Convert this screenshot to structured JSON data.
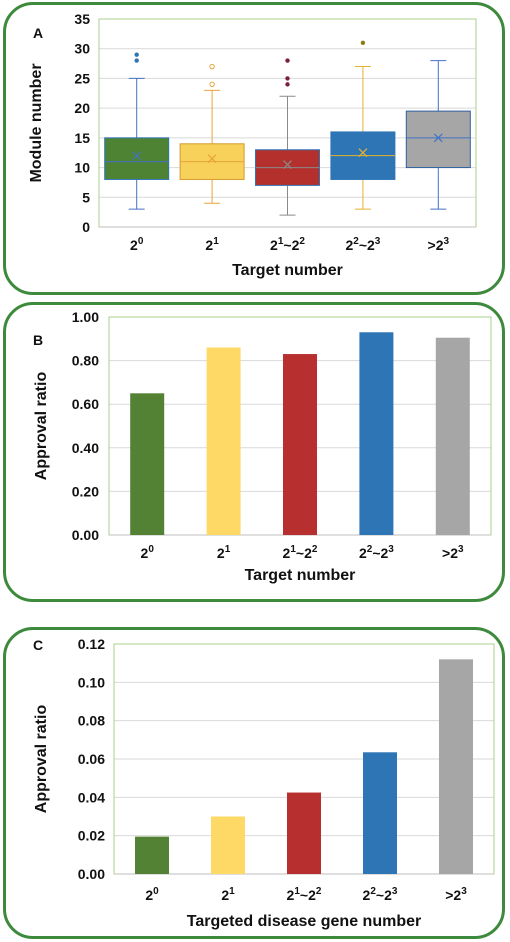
{
  "chart_data": [
    {
      "panel_label": "A",
      "type": "box",
      "categories": [
        {
          "base": "2",
          "sup": "0"
        },
        {
          "base": "2",
          "sup": "1"
        },
        {
          "base": "2",
          "sup": "1",
          "mid": "~2",
          "sup2": "2"
        },
        {
          "base": "2",
          "sup": "2",
          "mid": "~2",
          "sup2": "3"
        },
        {
          "base": ">2",
          "sup": "3"
        }
      ],
      "boxes": [
        {
          "min": 3,
          "q1": 8,
          "median": 11,
          "q3": 15,
          "max": 25,
          "mean": 12,
          "outliers": [
            28,
            29
          ],
          "color": "#4e8334"
        },
        {
          "min": 4,
          "q1": 8,
          "median": 11,
          "q3": 14,
          "max": 23,
          "mean": 11.5,
          "outliers": [
            24,
            27
          ],
          "color": "#f7d15a"
        },
        {
          "min": 2,
          "q1": 7,
          "median": 10,
          "q3": 13,
          "max": 22,
          "mean": 10.5,
          "outliers": [
            24,
            25,
            28
          ],
          "color": "#b3302d"
        },
        {
          "min": 3,
          "q1": 8,
          "median": 12,
          "q3": 16,
          "max": 27,
          "mean": 12.5,
          "outliers": [
            31
          ],
          "color": "#2e75b6"
        },
        {
          "min": 3,
          "q1": 10,
          "median": 15,
          "q3": 19.5,
          "max": 28,
          "mean": 15,
          "outliers": [],
          "color": "#a6a6a6"
        }
      ],
      "ylabel": "Module number",
      "xlabel": "Target number",
      "ylim": [
        0,
        35
      ],
      "yticks": [
        "0",
        "5",
        "10",
        "15",
        "20",
        "25",
        "30",
        "35"
      ],
      "grid": true
    },
    {
      "panel_label": "B",
      "type": "bar",
      "categories": [
        {
          "base": "2",
          "sup": "0"
        },
        {
          "base": "2",
          "sup": "1"
        },
        {
          "base": "2",
          "sup": "1",
          "mid": "~2",
          "sup2": "2"
        },
        {
          "base": "2",
          "sup": "2",
          "mid": "~2",
          "sup2": "3"
        },
        {
          "base": ">2",
          "sup": "3"
        }
      ],
      "values": [
        0.65,
        0.86,
        0.83,
        0.93,
        0.905
      ],
      "colors": [
        "#548235",
        "#ffd966",
        "#b72f2f",
        "#2e75b6",
        "#a6a6a6"
      ],
      "ylabel": "Approval ratio",
      "xlabel": "Target number",
      "ylim": [
        0,
        1.0
      ],
      "yticks": [
        "0.00",
        "0.20",
        "0.40",
        "0.60",
        "0.80",
        "1.00"
      ],
      "grid": true
    },
    {
      "panel_label": "C",
      "type": "bar",
      "categories": [
        {
          "base": "2",
          "sup": "0"
        },
        {
          "base": "2",
          "sup": "1"
        },
        {
          "base": "2",
          "sup": "1",
          "mid": "~2",
          "sup2": "2"
        },
        {
          "base": "2",
          "sup": "2",
          "mid": "~2",
          "sup2": "3"
        },
        {
          "base": ">2",
          "sup": "3"
        }
      ],
      "values": [
        0.0195,
        0.03,
        0.0425,
        0.0635,
        0.112
      ],
      "colors": [
        "#548235",
        "#ffd966",
        "#b72f2f",
        "#2e75b6",
        "#a6a6a6"
      ],
      "ylabel": "Approval ratio",
      "xlabel": "Targeted disease gene number",
      "ylim": [
        0,
        0.12
      ],
      "yticks": [
        "0.00",
        "0.02",
        "0.04",
        "0.06",
        "0.08",
        "0.10",
        "0.12"
      ],
      "grid": true
    }
  ]
}
